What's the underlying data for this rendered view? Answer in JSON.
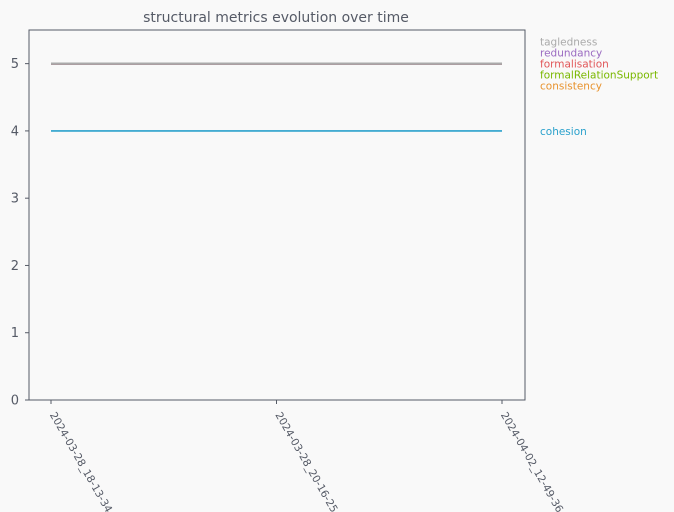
{
  "chart_data": {
    "type": "line",
    "title": "structural metrics evolution over time",
    "xlabel": "",
    "ylabel": "",
    "x": [
      "2024-03-28_18-13-34",
      "2024-03-28_20-16-25",
      "2024-04-02_12-49-36"
    ],
    "ylim": [
      0,
      5.5
    ],
    "yticks": [
      0,
      1,
      2,
      3,
      4,
      5
    ],
    "grid": false,
    "legend_placement": "right",
    "series": [
      {
        "name": "tagledness",
        "values": [
          5,
          5,
          5
        ],
        "color": "#aaaaaa"
      },
      {
        "name": "redundancy",
        "values": [
          5,
          5,
          5
        ],
        "color": "#9b6bc1"
      },
      {
        "name": "formalisation",
        "values": [
          5,
          5,
          5
        ],
        "color": "#e15759"
      },
      {
        "name": "formalRelationSupport",
        "values": [
          5,
          5,
          5
        ],
        "color": "#7ab800"
      },
      {
        "name": "consistency",
        "values": [
          5,
          5,
          5
        ],
        "color": "#e8932e"
      },
      {
        "name": "cohesion",
        "values": [
          4,
          4,
          4
        ],
        "color": "#2aa1cc"
      }
    ]
  }
}
